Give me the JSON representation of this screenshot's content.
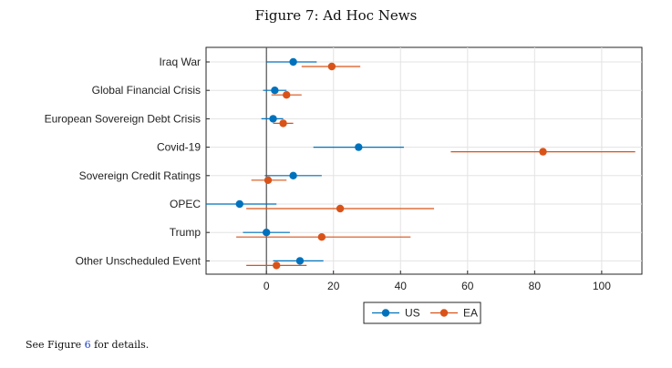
{
  "figure": {
    "title": "Figure 7: Ad Hoc News",
    "note_before": "See Figure ",
    "note_ref": "6",
    "note_after": " for details."
  },
  "colors": {
    "US": "#0072BD",
    "EA": "#D95319"
  },
  "chart_data": {
    "type": "scatter",
    "subtype": "coefficient-plot-with-confidence-intervals",
    "categories": [
      "Iraq War",
      "Global Financial Crisis",
      "European Sovereign Debt Crisis",
      "Covid-19",
      "Sovereign Credit Ratings",
      "OPEC",
      "Trump",
      "Other Unscheduled Event"
    ],
    "xlim": [
      -18,
      112
    ],
    "xticks": [
      0,
      20,
      40,
      60,
      80,
      100
    ],
    "grid": true,
    "legend": "bottom-center",
    "series": [
      {
        "name": "US",
        "values": [
          8,
          2.5,
          2,
          27.5,
          8,
          -8,
          0,
          10
        ],
        "ci_low": [
          0,
          -1,
          -1.5,
          14,
          -0.5,
          -18,
          -7,
          2
        ],
        "ci_high": [
          15,
          6,
          5,
          41,
          16.5,
          3,
          7,
          17
        ]
      },
      {
        "name": "EA",
        "values": [
          19.5,
          6,
          5,
          82.5,
          0.5,
          22,
          16.5,
          3
        ],
        "ci_low": [
          10.5,
          1.5,
          2,
          55,
          -4.5,
          -6,
          -9,
          -6
        ],
        "ci_high": [
          28,
          10.5,
          8,
          110,
          6,
          50,
          43,
          12
        ]
      }
    ]
  }
}
